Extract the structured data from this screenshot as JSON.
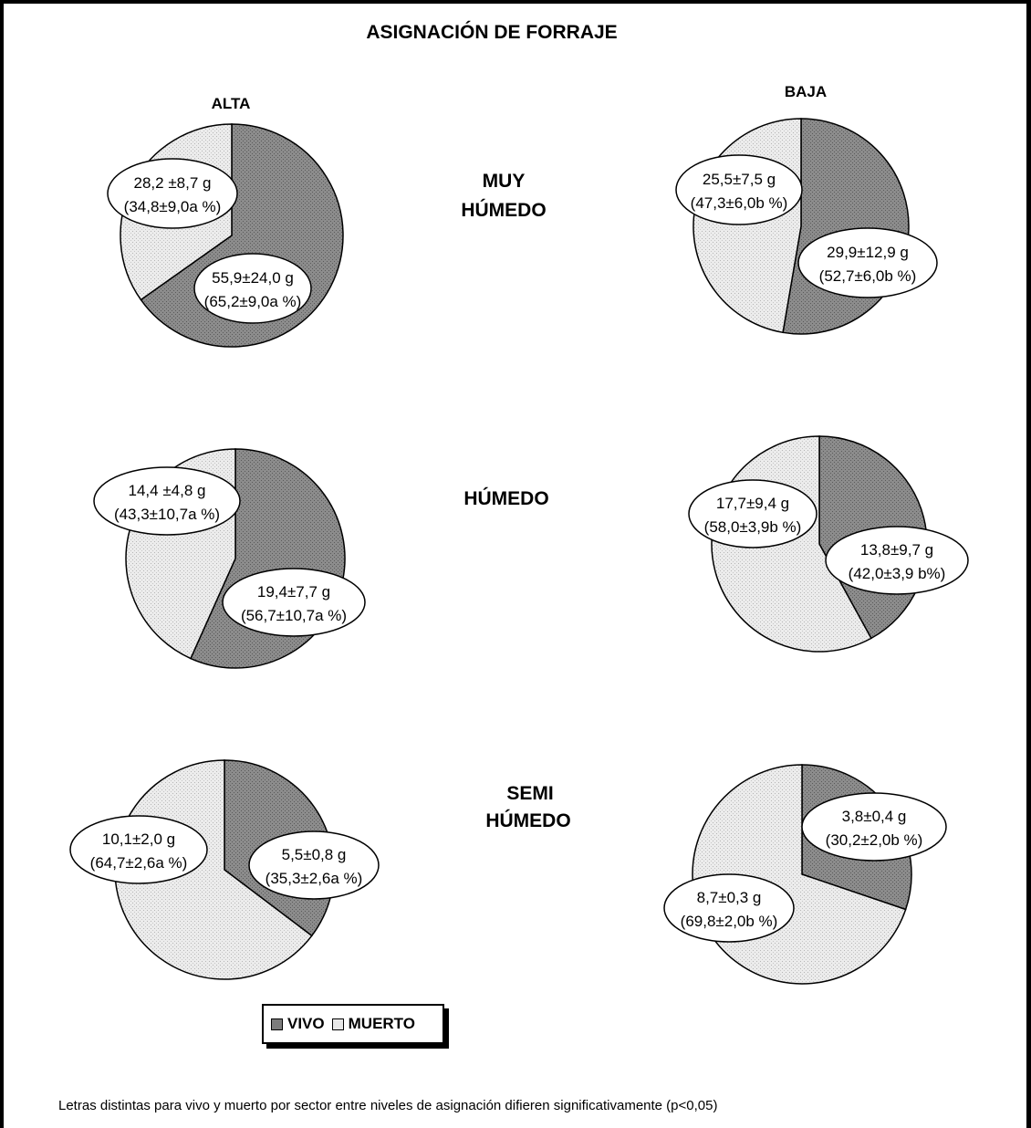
{
  "title": "ASIGNACIÓN DE FORRAJE",
  "columns": [
    "ALTA",
    "BAJA"
  ],
  "rows": [
    {
      "lines": [
        "MUY",
        "HÚMEDO"
      ]
    },
    {
      "lines": [
        "HÚMEDO"
      ]
    },
    {
      "lines": [
        "SEMI",
        "HÚMEDO"
      ]
    }
  ],
  "legend": {
    "vivo": "VIVO",
    "muerto": "MUERTO"
  },
  "footnote": "Letras distintas para vivo y muerto por sector entre niveles de asignación difieren significativamente (p<0,05)",
  "colors": {
    "vivo": "#7c7c7c",
    "muerto": "#e8e8e8"
  },
  "chart_data": [
    {
      "type": "pie",
      "title": "",
      "asignacion": "ALTA",
      "sector": "MUY HÚMEDO",
      "slices": [
        {
          "name": "VIVO",
          "value": 65.2,
          "label_lines": [
            "55,9±24,0 g",
            "(65,2±9,0a %)"
          ]
        },
        {
          "name": "MUERTO",
          "value": 34.8,
          "label_lines": [
            "28,2 ±8,7 g",
            "(34,8±9,0a %)"
          ]
        }
      ]
    },
    {
      "type": "pie",
      "title": "",
      "asignacion": "BAJA",
      "sector": "MUY HÚMEDO",
      "slices": [
        {
          "name": "VIVO",
          "value": 52.7,
          "label_lines": [
            "29,9±12,9 g",
            "(52,7±6,0b %)"
          ]
        },
        {
          "name": "MUERTO",
          "value": 47.3,
          "label_lines": [
            "25,5±7,5 g",
            "(47,3±6,0b %)"
          ]
        }
      ]
    },
    {
      "type": "pie",
      "title": "",
      "asignacion": "ALTA",
      "sector": "HÚMEDO",
      "slices": [
        {
          "name": "VIVO",
          "value": 56.7,
          "label_lines": [
            "19,4±7,7 g",
            "(56,7±10,7a %)"
          ]
        },
        {
          "name": "MUERTO",
          "value": 43.3,
          "label_lines": [
            "14,4 ±4,8 g",
            "(43,3±10,7a %)"
          ]
        }
      ]
    },
    {
      "type": "pie",
      "title": "",
      "asignacion": "BAJA",
      "sector": "HÚMEDO",
      "slices": [
        {
          "name": "VIVO",
          "value": 42.0,
          "label_lines": [
            "13,8±9,7 g",
            "(42,0±3,9 b%)"
          ]
        },
        {
          "name": "MUERTO",
          "value": 58.0,
          "label_lines": [
            "17,7±9,4 g",
            "(58,0±3,9b %)"
          ]
        }
      ]
    },
    {
      "type": "pie",
      "title": "",
      "asignacion": "ALTA",
      "sector": "SEMI HÚMEDO",
      "slices": [
        {
          "name": "VIVO",
          "value": 35.3,
          "label_lines": [
            "5,5±0,8 g",
            "(35,3±2,6a %)"
          ]
        },
        {
          "name": "MUERTO",
          "value": 64.7,
          "label_lines": [
            "10,1±2,0 g",
            "(64,7±2,6a %)"
          ]
        }
      ]
    },
    {
      "type": "pie",
      "title": "",
      "asignacion": "BAJA",
      "sector": "SEMI HÚMEDO",
      "slices": [
        {
          "name": "VIVO",
          "value": 30.2,
          "label_lines": [
            "3,8±0,4 g",
            "(30,2±2,0b %)"
          ]
        },
        {
          "name": "MUERTO",
          "value": 69.8,
          "label_lines": [
            "8,7±0,3 g",
            "(69,8±2,0b %)"
          ]
        }
      ]
    }
  ]
}
